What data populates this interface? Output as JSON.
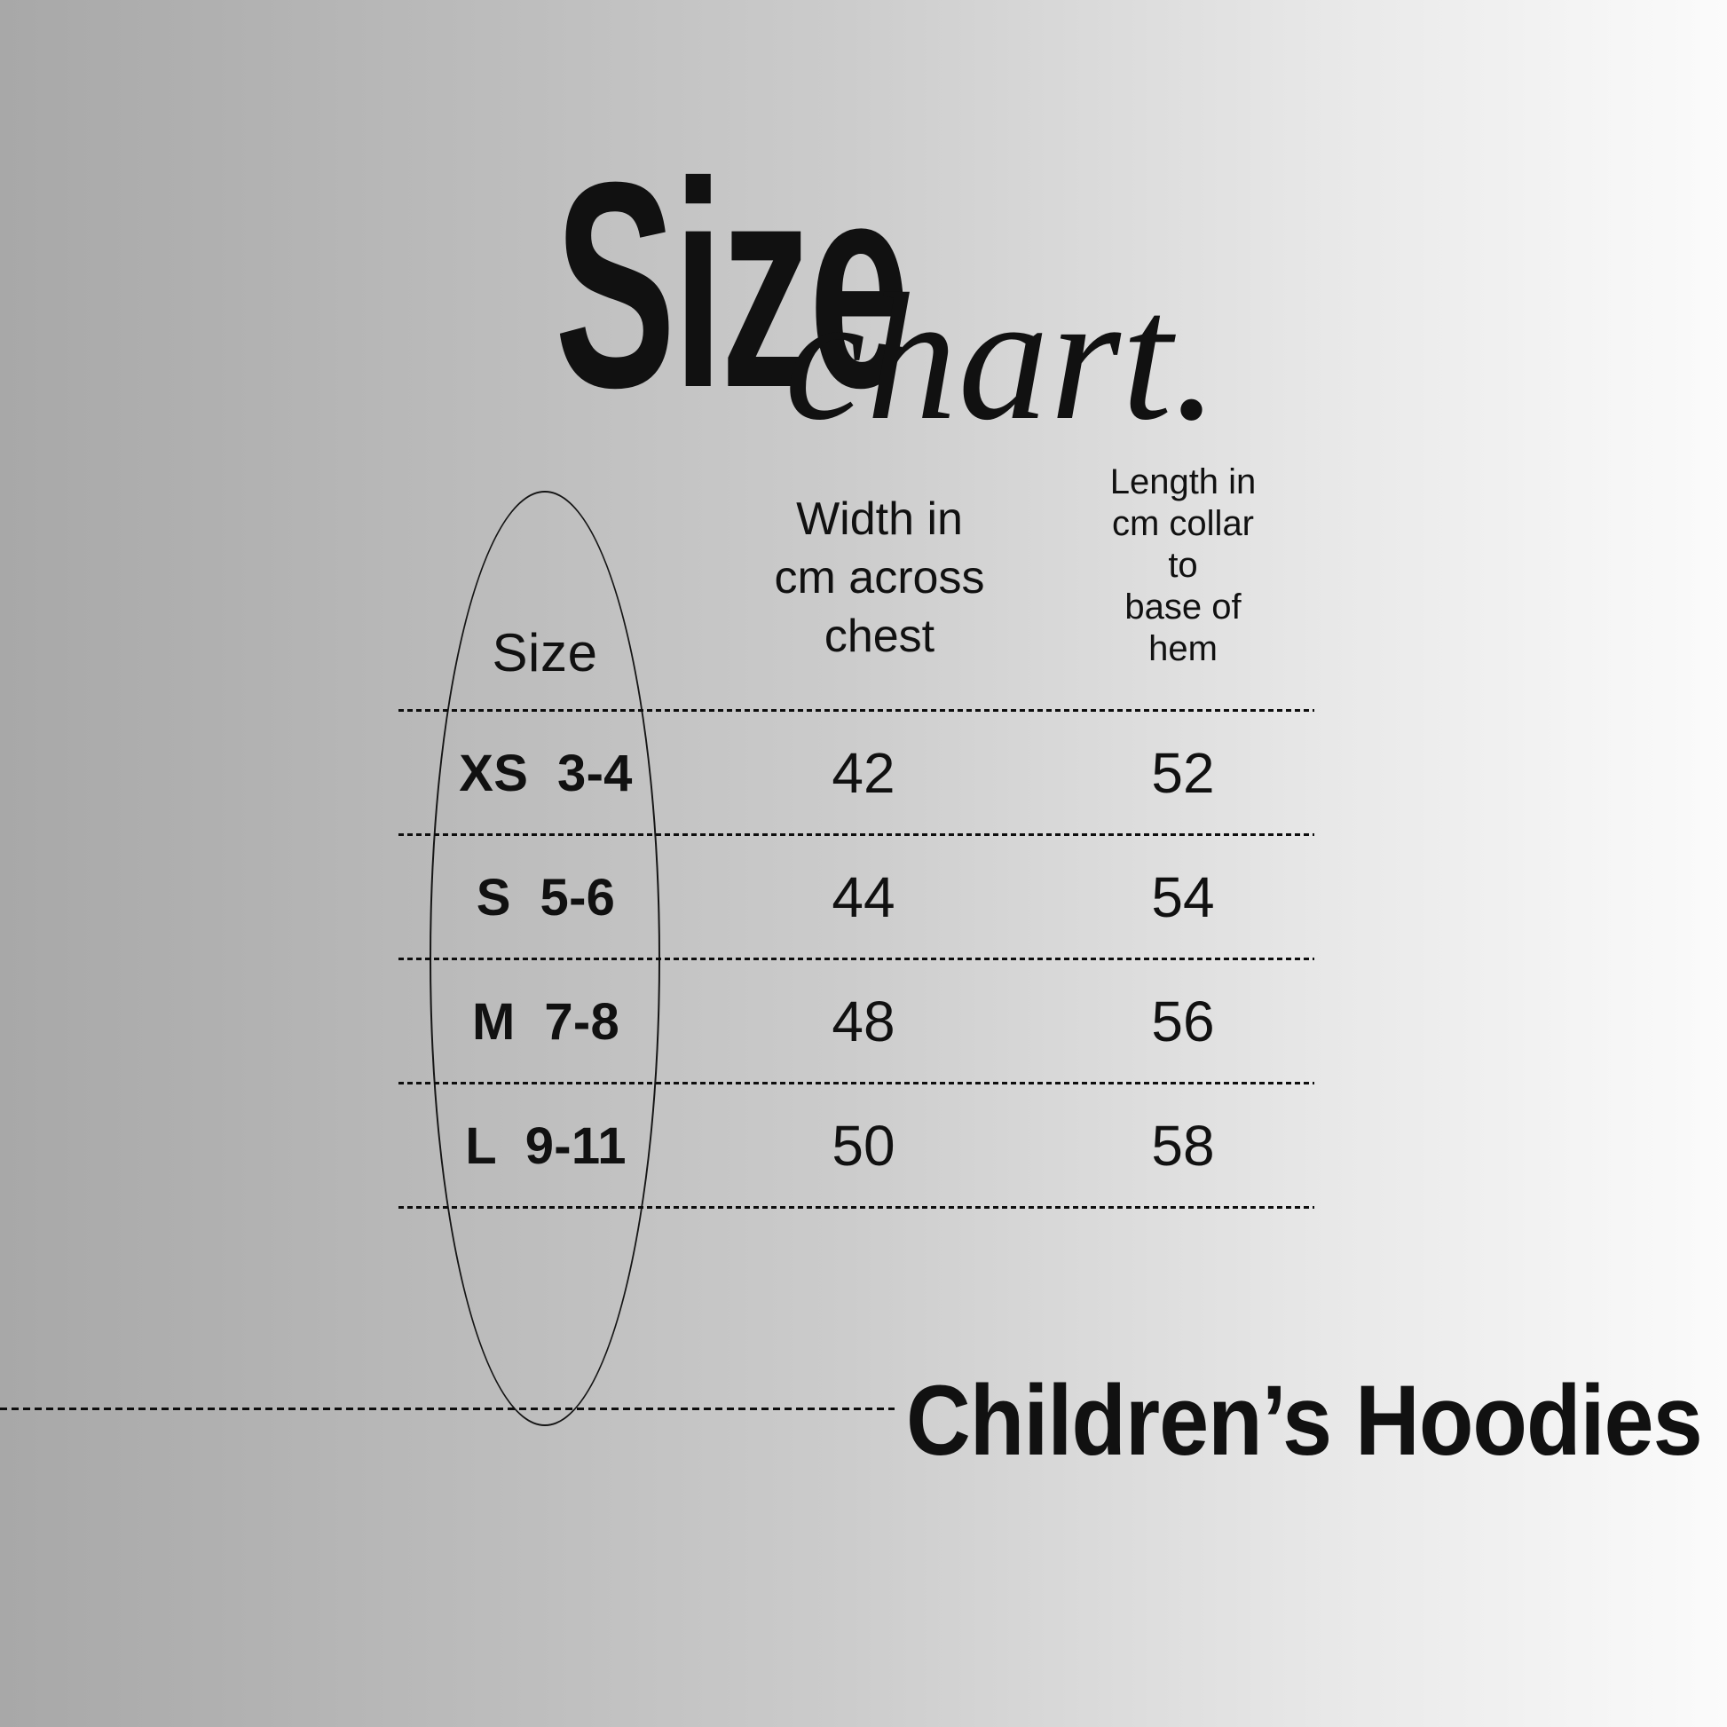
{
  "page": {
    "background_left_color": "#a8a8a8",
    "background_right_color": "#fbfbfb",
    "text_color": "#111111"
  },
  "title": {
    "main": "Size",
    "script": "chart."
  },
  "table": {
    "headers": {
      "size_label": "Size",
      "width_label": "Width in\ncm across\nchest",
      "length_label": "Length in\ncm collar\nto\nbase of\nhem"
    },
    "rows": [
      {
        "size": "XS  3-4",
        "width_cm": "42",
        "length_cm": "52"
      },
      {
        "size": "S  5-6",
        "width_cm": "44",
        "length_cm": "54"
      },
      {
        "size": "M  7-8",
        "width_cm": "48",
        "length_cm": "56"
      },
      {
        "size": "L  9-11",
        "width_cm": "50",
        "length_cm": "58"
      }
    ]
  },
  "footer": {
    "category_label": "Children’s Hoodies"
  }
}
